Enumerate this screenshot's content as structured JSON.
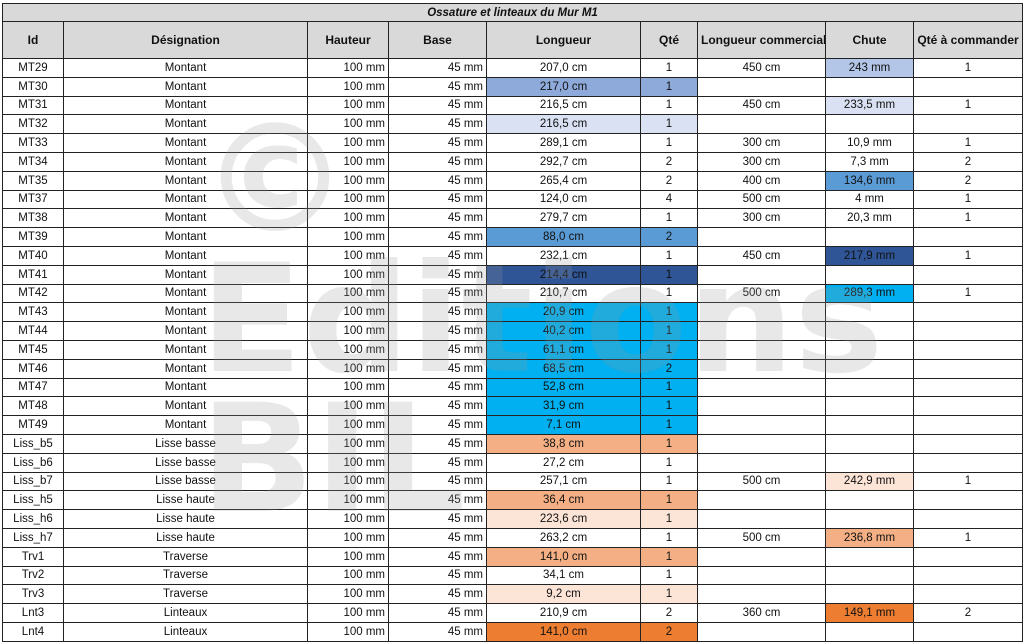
{
  "title": "Ossature et linteaux du Mur M1",
  "headers": [
    "Id",
    "Désignation",
    "Hauteur",
    "Base",
    "Longueur",
    "Qté",
    "Longueur commerciale",
    "Chute",
    "Qté à commander"
  ],
  "watermark": "© Editions BIL",
  "colors": {
    "a": "#b4c6e7",
    "b": "#8eaadb",
    "c": "#d9e1f2",
    "d": "#5b9bd5",
    "e": "#2f5597",
    "f": "#00b0f0",
    "g": "#f4b084",
    "h": "#fce4d6",
    "i": "#ed7d31"
  },
  "rows": [
    [
      "MT29",
      "Montant",
      "100 mm",
      "45 mm",
      "207,0 cm",
      "1",
      "450 cm",
      "243 mm",
      "1",
      "",
      "a"
    ],
    [
      "MT30",
      "Montant",
      "100 mm",
      "45 mm",
      "217,0 cm",
      "1",
      "",
      "",
      "",
      "b",
      ""
    ],
    [
      "MT31",
      "Montant",
      "100 mm",
      "45 mm",
      "216,5 cm",
      "1",
      "450 cm",
      "233,5 mm",
      "1",
      "",
      "c"
    ],
    [
      "MT32",
      "Montant",
      "100 mm",
      "45 mm",
      "216,5 cm",
      "1",
      "",
      "",
      "",
      "c",
      ""
    ],
    [
      "MT33",
      "Montant",
      "100 mm",
      "45 mm",
      "289,1 cm",
      "1",
      "300 cm",
      "10,9 mm",
      "1",
      "",
      ""
    ],
    [
      "MT34",
      "Montant",
      "100 mm",
      "45 mm",
      "292,7 cm",
      "2",
      "300 cm",
      "7,3 mm",
      "2",
      "",
      ""
    ],
    [
      "MT35",
      "Montant",
      "100 mm",
      "45 mm",
      "265,4 cm",
      "2",
      "400 cm",
      "134,6 mm",
      "2",
      "",
      "d"
    ],
    [
      "MT37",
      "Montant",
      "100 mm",
      "45 mm",
      "124,0 cm",
      "4",
      "500 cm",
      "4 mm",
      "1",
      "",
      ""
    ],
    [
      "MT38",
      "Montant",
      "100 mm",
      "45 mm",
      "279,7 cm",
      "1",
      "300 cm",
      "20,3 mm",
      "1",
      "",
      ""
    ],
    [
      "MT39",
      "Montant",
      "100 mm",
      "45 mm",
      "88,0 cm",
      "2",
      "",
      "",
      "",
      "d",
      ""
    ],
    [
      "MT40",
      "Montant",
      "100 mm",
      "45 mm",
      "232,1 cm",
      "1",
      "450 cm",
      "217,9 mm",
      "1",
      "",
      "e"
    ],
    [
      "MT41",
      "Montant",
      "100 mm",
      "45 mm",
      "214,4 cm",
      "1",
      "",
      "",
      "",
      "e",
      ""
    ],
    [
      "MT42",
      "Montant",
      "100 mm",
      "45 mm",
      "210,7 cm",
      "1",
      "500 cm",
      "289,3 mm",
      "1",
      "",
      "f"
    ],
    [
      "MT43",
      "Montant",
      "100 mm",
      "45 mm",
      "20,9 cm",
      "1",
      "",
      "",
      "",
      "f",
      ""
    ],
    [
      "MT44",
      "Montant",
      "100 mm",
      "45 mm",
      "40,2 cm",
      "1",
      "",
      "",
      "",
      "f",
      ""
    ],
    [
      "MT45",
      "Montant",
      "100 mm",
      "45 mm",
      "61,1 cm",
      "1",
      "",
      "",
      "",
      "f",
      ""
    ],
    [
      "MT46",
      "Montant",
      "100 mm",
      "45 mm",
      "68,5 cm",
      "2",
      "",
      "",
      "",
      "f",
      ""
    ],
    [
      "MT47",
      "Montant",
      "100 mm",
      "45 mm",
      "52,8 cm",
      "1",
      "",
      "",
      "",
      "f",
      ""
    ],
    [
      "MT48",
      "Montant",
      "100 mm",
      "45 mm",
      "31,9 cm",
      "1",
      "",
      "",
      "",
      "f",
      ""
    ],
    [
      "MT49",
      "Montant",
      "100 mm",
      "45 mm",
      "7,1 cm",
      "1",
      "",
      "",
      "",
      "f",
      ""
    ],
    [
      "Liss_b5",
      "Lisse basse",
      "100 mm",
      "45 mm",
      "38,8 cm",
      "1",
      "",
      "",
      "",
      "g",
      ""
    ],
    [
      "Liss_b6",
      "Lisse basse",
      "100 mm",
      "45 mm",
      "27,2 cm",
      "1",
      "",
      "",
      "",
      "",
      ""
    ],
    [
      "Liss_b7",
      "Lisse basse",
      "100 mm",
      "45 mm",
      "257,1 cm",
      "1",
      "500 cm",
      "242,9 mm",
      "1",
      "",
      "h"
    ],
    [
      "Liss_h5",
      "Lisse haute",
      "100 mm",
      "45 mm",
      "36,4 cm",
      "1",
      "",
      "",
      "",
      "g",
      ""
    ],
    [
      "Liss_h6",
      "Lisse haute",
      "100 mm",
      "45 mm",
      "223,6 cm",
      "1",
      "",
      "",
      "",
      "h",
      ""
    ],
    [
      "Liss_h7",
      "Lisse haute",
      "100 mm",
      "45 mm",
      "263,2 cm",
      "1",
      "500 cm",
      "236,8 mm",
      "1",
      "",
      "g"
    ],
    [
      "Trv1",
      "Traverse",
      "100 mm",
      "45 mm",
      "141,0 cm",
      "1",
      "",
      "",
      "",
      "g",
      ""
    ],
    [
      "Trv2",
      "Traverse",
      "100 mm",
      "45 mm",
      "34,1 cm",
      "1",
      "",
      "",
      "",
      "",
      ""
    ],
    [
      "Trv3",
      "Traverse",
      "100 mm",
      "45 mm",
      "9,2 cm",
      "1",
      "",
      "",
      "",
      "h",
      ""
    ],
    [
      "Lnt3",
      "Linteaux",
      "100 mm",
      "45 mm",
      "210,9 cm",
      "2",
      "360 cm",
      "149,1 mm",
      "2",
      "",
      "i"
    ],
    [
      "Lnt4",
      "Linteaux",
      "100 mm",
      "45 mm",
      "141,0 cm",
      "2",
      "",
      "",
      "",
      "i",
      ""
    ]
  ]
}
